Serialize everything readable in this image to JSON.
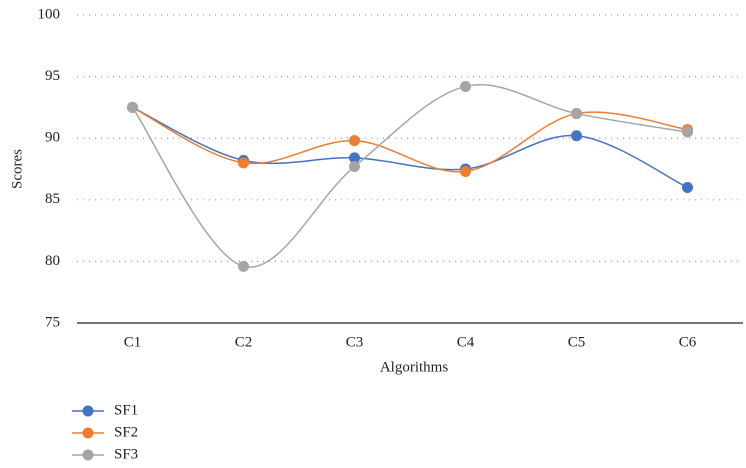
{
  "chart_data": {
    "type": "line",
    "smooth": true,
    "x_label": "Algorithms",
    "y_label": "Scores",
    "categories": [
      "C1",
      "C2",
      "C3",
      "C4",
      "C5",
      "C6"
    ],
    "series": [
      {
        "name": "SF1",
        "color": "#4472c4",
        "values": [
          92.5,
          88.2,
          88.4,
          87.5,
          90.2,
          86.0
        ]
      },
      {
        "name": "SF2",
        "color": "#ed7d31",
        "values": [
          92.5,
          88.0,
          89.8,
          87.3,
          92.0,
          90.7
        ]
      },
      {
        "name": "SF3",
        "color": "#a5a5a5",
        "values": [
          92.5,
          79.6,
          87.7,
          94.2,
          92.0,
          90.5
        ]
      }
    ],
    "ylim": [
      75,
      100
    ],
    "yticks": [
      75,
      80,
      85,
      90,
      95,
      100
    ],
    "grid": true,
    "legend": "bottom-left"
  }
}
